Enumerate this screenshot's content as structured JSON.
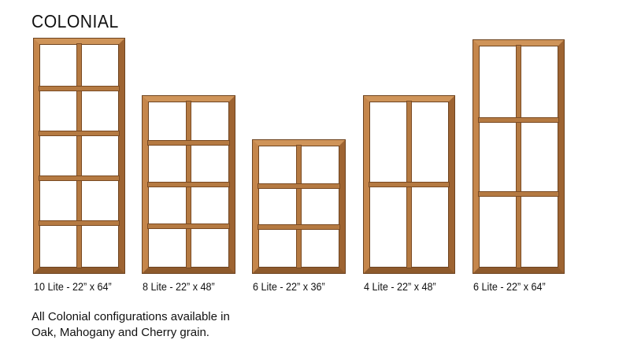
{
  "title": "COLONIAL",
  "windows": [
    {
      "caption": "10 Lite - 22” x 64”",
      "cols": 2,
      "rows": 5
    },
    {
      "caption": "8 Lite - 22” x 48”",
      "cols": 2,
      "rows": 4
    },
    {
      "caption": "6 Lite - 22” x 36”",
      "cols": 2,
      "rows": 3
    },
    {
      "caption": "4 Lite - 22” x 48”",
      "cols": 2,
      "rows": 2
    },
    {
      "caption": "6 Lite - 22” x 64”",
      "cols": 2,
      "rows": 3
    }
  ],
  "note": {
    "line1": "All Colonial configurations available in",
    "line2": "Oak, Mahogany and Cherry grain."
  },
  "colors": {
    "wood": "#b8783f",
    "wood_dark": "#6e4420"
  }
}
